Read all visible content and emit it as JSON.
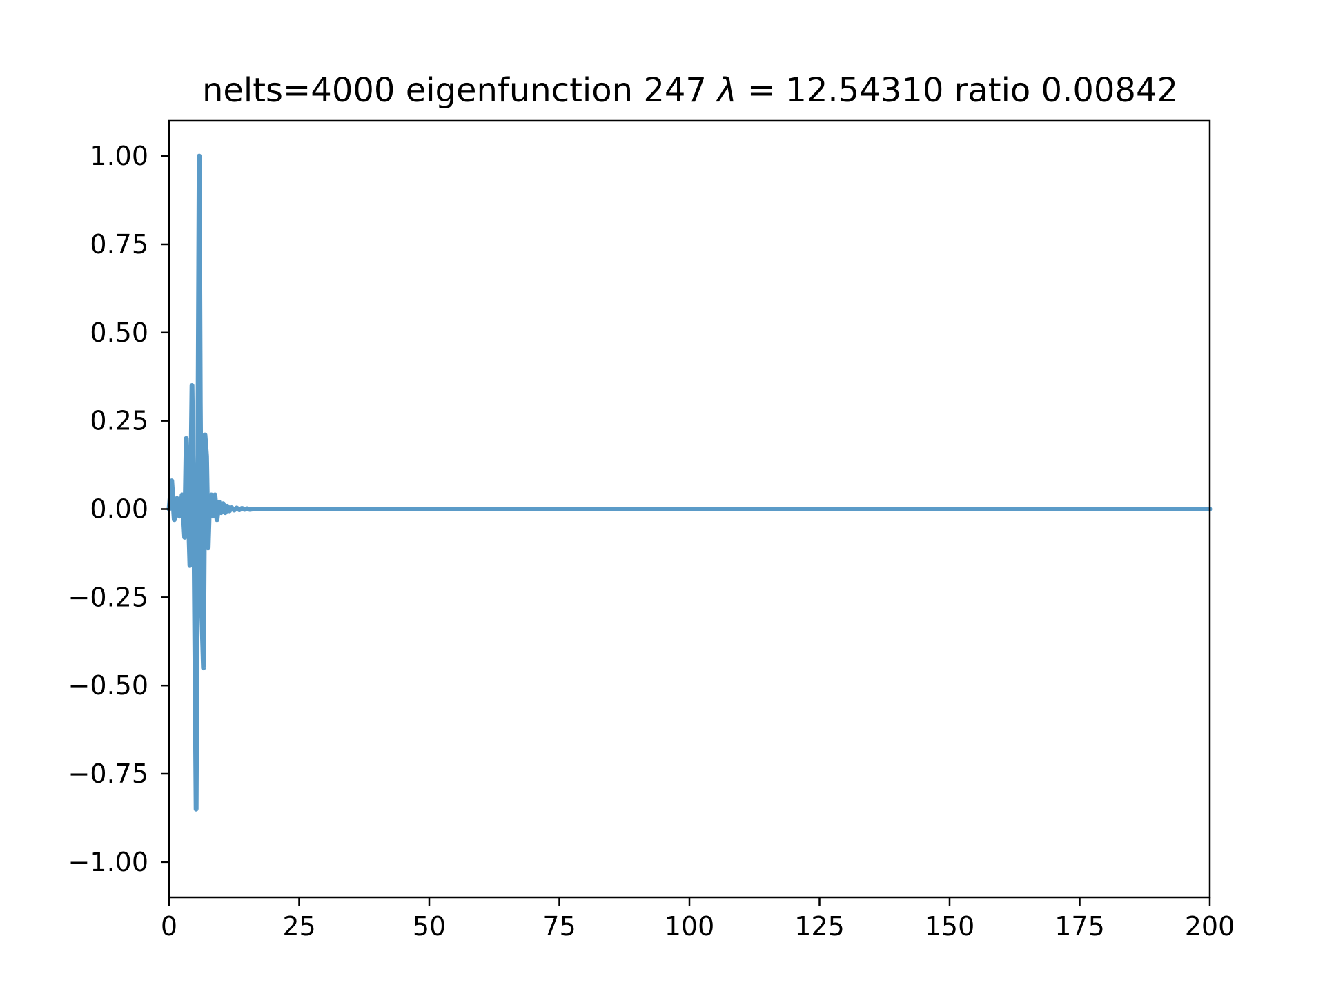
{
  "chart_data": {
    "type": "line",
    "title": "nelts=4000  eigenfunction 247  λ = 12.54310 ratio 0.00842",
    "xlabel": "",
    "ylabel": "",
    "xlim": [
      0,
      200
    ],
    "ylim": [
      -1.1,
      1.1
    ],
    "grid": false,
    "xticks": [
      0,
      25,
      50,
      75,
      100,
      125,
      150,
      175,
      200
    ],
    "yticks": [
      1.0,
      0.75,
      0.5,
      0.25,
      0.0,
      -0.25,
      -0.5,
      -0.75,
      -1.0
    ],
    "xtick_labels": [
      "0",
      "25",
      "50",
      "75",
      "100",
      "125",
      "150",
      "175",
      "200"
    ],
    "ytick_labels": [
      "1.00",
      "0.75",
      "0.50",
      "0.25",
      "0.00",
      "−0.25",
      "−0.50",
      "−0.75",
      "−1.00"
    ],
    "series": [
      {
        "color": "#5b9bc8",
        "x": [
          0,
          0.5,
          1.0,
          1.5,
          2.0,
          2.5,
          3.0,
          3.3,
          3.6,
          4.0,
          4.4,
          4.8,
          5.2,
          5.5,
          5.8,
          6.0,
          6.3,
          6.6,
          6.9,
          7.2,
          7.5,
          7.8,
          8.1,
          8.4,
          8.8,
          9.2,
          9.6,
          10.0,
          10.4,
          10.8,
          11.2,
          11.6,
          12.0,
          12.5,
          13.0,
          13.5,
          14.0,
          14.5,
          15.0,
          15.5,
          16.0,
          17.0,
          18.0,
          19.0,
          20.0,
          22.0,
          25.0,
          30.0,
          50.0,
          100.0,
          150.0,
          200.0
        ],
        "y": [
          0.0,
          0.08,
          -0.03,
          0.03,
          -0.02,
          0.04,
          -0.08,
          0.2,
          0.05,
          -0.16,
          0.35,
          -0.1,
          -0.85,
          0.05,
          1.0,
          0.3,
          -0.3,
          -0.45,
          0.21,
          0.15,
          -0.11,
          0.03,
          0.04,
          -0.02,
          0.04,
          -0.03,
          0.02,
          -0.01,
          0.015,
          -0.01,
          0.008,
          -0.005,
          0.004,
          -0.003,
          0.003,
          -0.002,
          0.002,
          -0.001,
          0.001,
          -0.001,
          0.0,
          0.0,
          0.0,
          0.0,
          0.0,
          0.0,
          0.0,
          0.0,
          0.0,
          0.0,
          0.0,
          0.0
        ]
      }
    ]
  }
}
